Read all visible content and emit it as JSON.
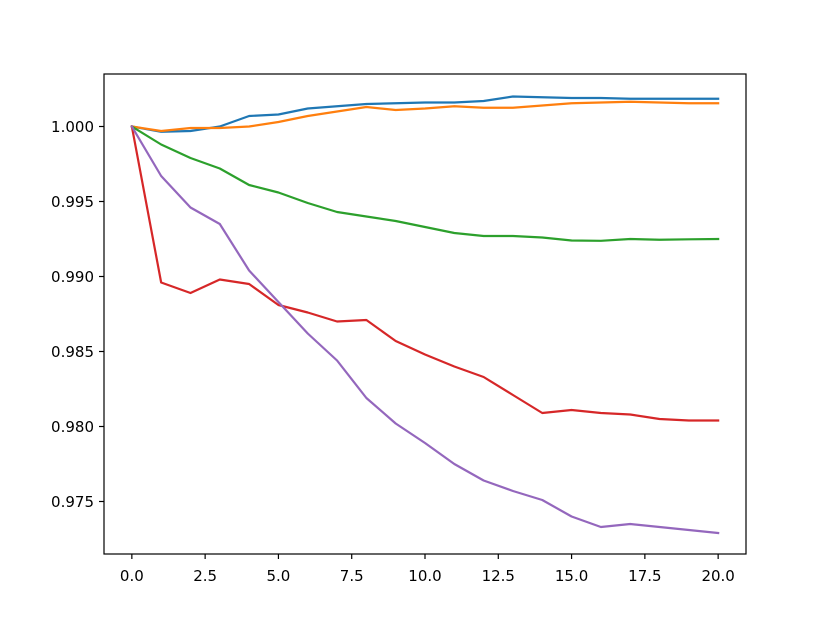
{
  "chart_data": {
    "type": "line",
    "title": "",
    "xlabel": "",
    "ylabel": "",
    "x": [
      0,
      1,
      2,
      3,
      4,
      5,
      6,
      7,
      8,
      9,
      10,
      11,
      12,
      13,
      14,
      15,
      16,
      17,
      18,
      19,
      20
    ],
    "xlim": [
      -0.95,
      20.95
    ],
    "ylim": [
      0.9715,
      1.0035
    ],
    "x_ticks": [
      0,
      2.5,
      5,
      7.5,
      10,
      12.5,
      15,
      17.5,
      20
    ],
    "x_tick_labels": [
      "0.0",
      "2.5",
      "5.0",
      "7.5",
      "10.0",
      "12.5",
      "15.0",
      "17.5",
      "20.0"
    ],
    "y_ticks": [
      0.975,
      0.98,
      0.985,
      0.99,
      0.995,
      1.0
    ],
    "y_tick_labels": [
      "0.975",
      "0.980",
      "0.985",
      "0.990",
      "0.995",
      "1.000"
    ],
    "grid": false,
    "legend": "none",
    "series": [
      {
        "color": "#1f77b4",
        "values": [
          1.0,
          0.99965,
          0.9997,
          1.0,
          1.0007,
          1.0008,
          1.0012,
          1.00135,
          1.0015,
          1.00155,
          1.0016,
          1.0016,
          1.0017,
          1.002,
          1.00195,
          1.0019,
          1.0019,
          1.00185,
          1.00185,
          1.00185,
          1.00185
        ]
      },
      {
        "color": "#ff7f0e",
        "values": [
          1.0,
          0.9997,
          0.9999,
          0.9999,
          1.0,
          1.0003,
          1.0007,
          1.001,
          1.0013,
          1.0011,
          1.0012,
          1.00135,
          1.00125,
          1.00125,
          1.0014,
          1.00155,
          1.0016,
          1.00165,
          1.0016,
          1.00155,
          1.00155
        ]
      },
      {
        "color": "#2ca02c",
        "values": [
          1.0,
          0.9988,
          0.9979,
          0.9972,
          0.9961,
          0.9956,
          0.9949,
          0.9943,
          0.994,
          0.9937,
          0.9933,
          0.9929,
          0.9927,
          0.9927,
          0.9926,
          0.9924,
          0.99238,
          0.9925,
          0.99245,
          0.99248,
          0.9925
        ]
      },
      {
        "color": "#d62728",
        "values": [
          1.0,
          0.9896,
          0.9889,
          0.9898,
          0.9895,
          0.9881,
          0.9876,
          0.987,
          0.9871,
          0.9857,
          0.9848,
          0.984,
          0.9833,
          0.9821,
          0.9809,
          0.9811,
          0.9809,
          0.9808,
          0.9805,
          0.9804,
          0.9804
        ]
      },
      {
        "color": "#9467bd",
        "values": [
          1.0,
          0.9967,
          0.9946,
          0.9935,
          0.9904,
          0.9883,
          0.9862,
          0.9844,
          0.9819,
          0.9802,
          0.9789,
          0.9775,
          0.9764,
          0.9757,
          0.9751,
          0.974,
          0.9733,
          0.9735,
          0.9733,
          0.9731,
          0.9729
        ]
      }
    ]
  }
}
